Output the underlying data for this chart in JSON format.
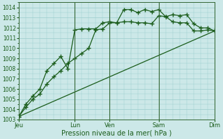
{
  "xlabel": "Pression niveau de la mer( hPa )",
  "ylim": [
    1003,
    1014.5
  ],
  "yticks": [
    1003,
    1004,
    1005,
    1006,
    1007,
    1008,
    1009,
    1010,
    1011,
    1012,
    1013,
    1014
  ],
  "bg_color": "#cce8e8",
  "grid_color": "#99cccc",
  "line_color": "#1a5c1a",
  "xlim": [
    0,
    14
  ],
  "series1_x": [
    0,
    0.5,
    1.0,
    1.5,
    2.0,
    2.5,
    3.0,
    3.5,
    4.0,
    4.5,
    5.0,
    5.5,
    6.0,
    6.5,
    7.0,
    7.5,
    8.0,
    8.5,
    9.0,
    9.5,
    10.0,
    10.5,
    11.0,
    11.5,
    12.0,
    12.5,
    13.0,
    13.5,
    14.0
  ],
  "series1_y": [
    1003.3,
    1004.2,
    1005.0,
    1005.5,
    1006.5,
    1007.2,
    1007.8,
    1008.5,
    1009.0,
    1009.5,
    1010.0,
    1011.8,
    1011.9,
    1012.5,
    1012.5,
    1012.6,
    1012.6,
    1012.5,
    1012.5,
    1012.4,
    1013.2,
    1013.1,
    1012.6,
    1012.5,
    1012.5,
    1011.7,
    1011.7,
    1011.8,
    1011.7
  ],
  "series2_x": [
    0,
    0.5,
    1.0,
    1.5,
    2.0,
    2.5,
    3.0,
    3.5,
    4.0,
    4.5,
    5.0,
    5.5,
    6.0,
    6.5,
    7.0,
    7.5,
    8.0,
    8.5,
    9.0,
    9.5,
    10.0,
    10.5,
    11.0,
    11.5,
    12.0,
    12.5,
    13.0,
    13.5,
    14.0
  ],
  "series2_y": [
    1003.3,
    1004.5,
    1005.3,
    1006.0,
    1007.8,
    1008.5,
    1009.2,
    1008.0,
    1011.8,
    1011.9,
    1011.9,
    1011.9,
    1012.5,
    1012.6,
    1012.5,
    1013.8,
    1013.8,
    1013.5,
    1013.8,
    1013.6,
    1013.8,
    1013.1,
    1013.3,
    1013.2,
    1013.3,
    1012.4,
    1012.0,
    1012.0,
    1011.7
  ],
  "series3_x": [
    0,
    14
  ],
  "series3_y": [
    1003.3,
    1011.7
  ],
  "vline_positions": [
    4.0,
    6.5,
    10.0,
    14.0
  ],
  "day_labels": [
    "Jeu",
    "Lun",
    "Ven",
    "Sam",
    "Dim"
  ],
  "day_positions": [
    0,
    4.0,
    6.5,
    10.0,
    14.0
  ]
}
